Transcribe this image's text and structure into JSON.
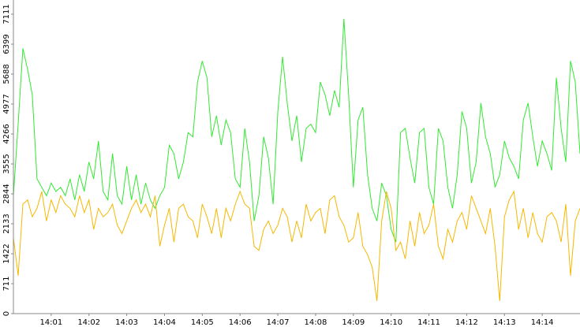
{
  "chart_data": {
    "type": "line",
    "x": [
      0,
      0.125,
      0.25,
      0.375,
      0.5,
      0.625,
      0.75,
      0.875,
      1,
      1.125,
      1.25,
      1.375,
      1.5,
      1.625,
      1.75,
      1.875,
      2,
      2.125,
      2.25,
      2.375,
      2.5,
      2.625,
      2.75,
      2.875,
      3,
      3.125,
      3.25,
      3.375,
      3.5,
      3.625,
      3.75,
      3.875,
      4,
      4.125,
      4.25,
      4.375,
      4.5,
      4.625,
      4.75,
      4.875,
      5,
      5.125,
      5.25,
      5.375,
      5.5,
      5.625,
      5.75,
      5.875,
      6,
      6.125,
      6.25,
      6.375,
      6.5,
      6.625,
      6.75,
      6.875,
      7,
      7.125,
      7.25,
      7.375,
      7.5,
      7.625,
      7.75,
      7.875,
      8,
      8.125,
      8.25,
      8.375,
      8.5,
      8.625,
      8.75,
      8.875,
      9,
      9.125,
      9.25,
      9.375,
      9.5,
      9.625,
      9.75,
      9.875,
      10,
      10.125,
      10.25,
      10.375,
      10.5,
      10.625,
      10.75,
      10.875,
      11,
      11.125,
      11.25,
      11.375,
      11.5,
      11.625,
      11.75,
      11.875,
      12,
      12.125,
      12.25,
      12.375,
      12.5,
      12.625,
      12.75,
      12.875,
      13,
      13.125,
      13.25,
      13.375,
      13.5,
      13.625,
      13.75,
      13.875,
      14,
      14.125,
      14.25,
      14.375,
      14.5,
      14.625,
      14.75,
      14.875,
      15
    ],
    "series": [
      {
        "color": "#33e833",
        "values": [
          2800,
          4500,
          6300,
          5800,
          5200,
          3200,
          3000,
          2800,
          3100,
          2900,
          3000,
          2800,
          3200,
          2700,
          3300,
          2900,
          3600,
          3200,
          4100,
          2900,
          2700,
          3800,
          2800,
          2600,
          3500,
          2700,
          3300,
          2600,
          3100,
          2700,
          2500,
          2800,
          3000,
          4000,
          3800,
          3200,
          3600,
          4300,
          4200,
          5500,
          6000,
          5600,
          4200,
          4700,
          4000,
          4600,
          4300,
          3200,
          3000,
          4400,
          3600,
          2200,
          2800,
          4200,
          3700,
          2600,
          4800,
          6100,
          5000,
          4100,
          4700,
          3600,
          4400,
          4500,
          4300,
          5500,
          5200,
          4700,
          5300,
          4900,
          7000,
          5200,
          3000,
          4600,
          4900,
          3300,
          2500,
          2200,
          3100,
          2800,
          2000,
          1700,
          4300,
          4400,
          3700,
          3100,
          4300,
          4400,
          3000,
          2600,
          4400,
          4100,
          3000,
          2500,
          3300,
          4800,
          4400,
          3100,
          3600,
          5000,
          4200,
          3800,
          3000,
          3300,
          4100,
          3700,
          3500,
          3200,
          4600,
          5000,
          4200,
          3500,
          4100,
          3800,
          3400,
          5600,
          4400,
          3600,
          6000,
          5500,
          3800
        ]
      },
      {
        "color": "#f5b800",
        "values": [
          1800,
          900,
          2600,
          2700,
          2300,
          2500,
          2900,
          2200,
          2700,
          2400,
          2800,
          2600,
          2500,
          2300,
          2800,
          2400,
          2700,
          2000,
          2500,
          2300,
          2400,
          2600,
          2100,
          1900,
          2200,
          2500,
          2700,
          2400,
          2600,
          2300,
          2800,
          1600,
          2100,
          2500,
          1700,
          2500,
          2600,
          2300,
          2200,
          1800,
          2600,
          2300,
          1900,
          2500,
          1800,
          2500,
          2200,
          2600,
          2900,
          2600,
          2500,
          1600,
          1500,
          2000,
          2200,
          1900,
          2100,
          2500,
          2300,
          1700,
          2200,
          1800,
          2600,
          2200,
          2400,
          2500,
          1900,
          2700,
          2800,
          2300,
          2100,
          1700,
          1800,
          2400,
          1600,
          1400,
          1100,
          300,
          2200,
          2900,
          2500,
          1500,
          1700,
          1300,
          2200,
          1600,
          2400,
          1900,
          2100,
          2600,
          1600,
          1300,
          2000,
          1700,
          2200,
          2400,
          2000,
          2800,
          2500,
          2200,
          1900,
          2500,
          1600,
          300,
          2300,
          2700,
          2900,
          2000,
          2500,
          1800,
          2400,
          1900,
          1700,
          2300,
          2400,
          2200,
          1700,
          2600,
          900,
          2200,
          2500
        ]
      }
    ],
    "xlim": [
      0,
      15
    ],
    "xticks": [
      {
        "value": 1,
        "label": "14:01"
      },
      {
        "value": 2,
        "label": "14:02"
      },
      {
        "value": 3,
        "label": "14:03"
      },
      {
        "value": 4,
        "label": "14:04"
      },
      {
        "value": 5,
        "label": "14:05"
      },
      {
        "value": 6,
        "label": "14:06"
      },
      {
        "value": 7,
        "label": "14:07"
      },
      {
        "value": 8,
        "label": "14:08"
      },
      {
        "value": 9,
        "label": "14:09"
      },
      {
        "value": 10,
        "label": "14:10"
      },
      {
        "value": 11,
        "label": "14:11"
      },
      {
        "value": 12,
        "label": "14:12"
      },
      {
        "value": 13,
        "label": "14:13"
      },
      {
        "value": 14,
        "label": "14:14"
      }
    ],
    "ylim": [
      0,
      7111
    ],
    "yticks": [
      0,
      711,
      1422,
      2133,
      2844,
      3555,
      4266,
      4977,
      5688,
      6399,
      7111
    ],
    "grid": false
  }
}
